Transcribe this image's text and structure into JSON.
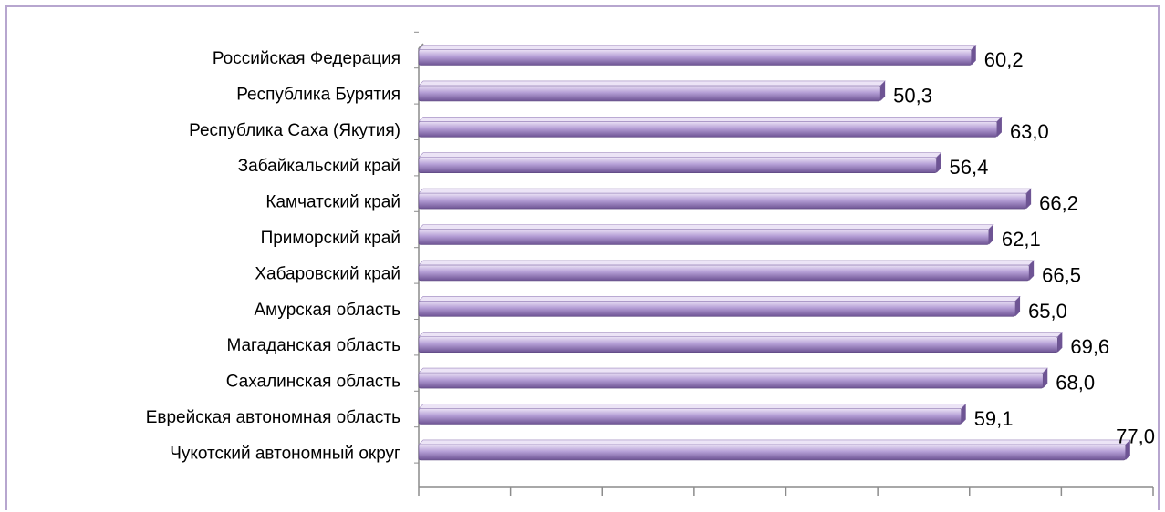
{
  "chart_data": {
    "type": "bar",
    "orientation": "horizontal",
    "categories": [
      "Российская Федерация",
      "Республика Бурятия",
      "Республика Саха (Якутия)",
      "Забайкальский край",
      "Камчатский край",
      "Приморский  край",
      "Хабаровский край",
      "Амурская область",
      "Магаданская область",
      "Сахалинская область",
      "Еврейская автономная область",
      "Чукотский автономный округ"
    ],
    "values": [
      60.2,
      50.3,
      63.0,
      56.4,
      66.2,
      62.1,
      66.5,
      65.0,
      69.6,
      68.0,
      59.1,
      77.0
    ],
    "value_labels": [
      "60,2",
      "50,3",
      "63,0",
      "56,4",
      "66,2",
      "62,1",
      "66,5",
      "65,0",
      "69,6",
      "68,0",
      "59,1",
      "77,0"
    ],
    "title": "",
    "xlabel": "",
    "ylabel": "",
    "xlim": [
      0,
      80
    ],
    "grid": false,
    "legend": "none",
    "colors": {
      "bar_light": "#ece4f6",
      "bar_mid": "#b59fd6",
      "bar_dark": "#6e5494",
      "axis": "#8c8c8c",
      "frame": "#b7a6cf"
    }
  }
}
